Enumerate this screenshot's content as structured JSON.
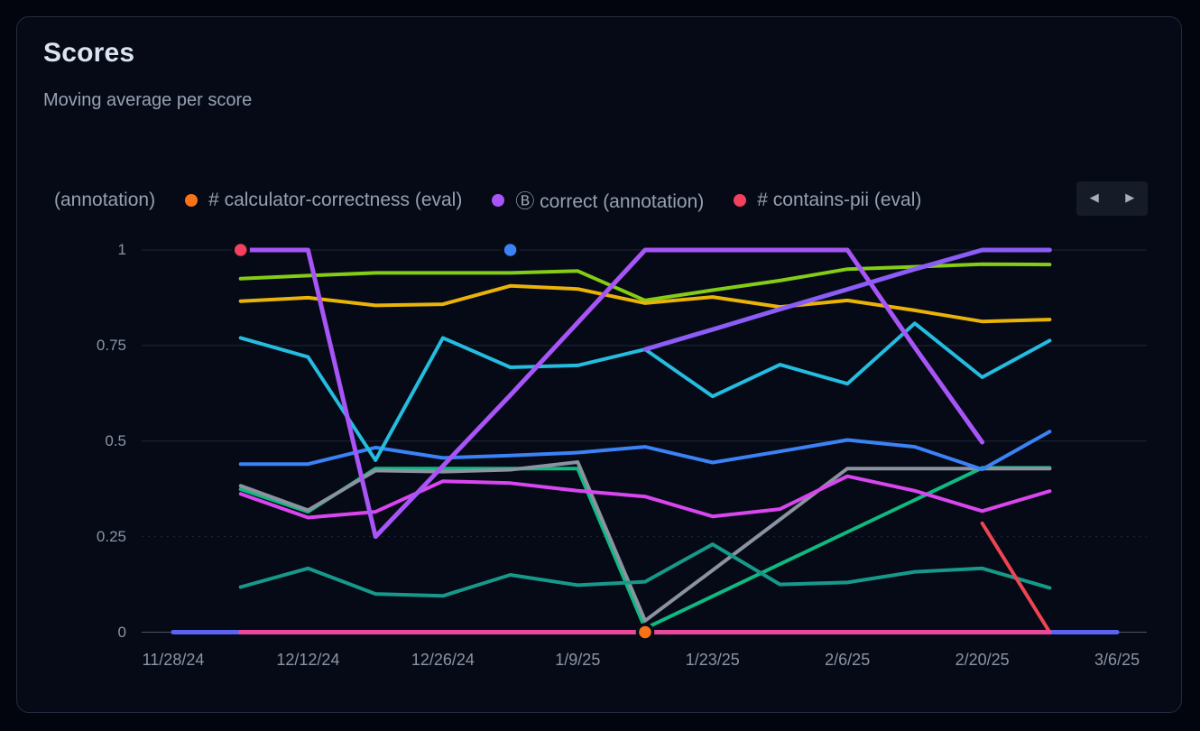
{
  "window": {
    "title": "Scores",
    "subtitle": "Moving average per score"
  },
  "legend": {
    "items": [
      {
        "label": "(annotation)",
        "color": null,
        "truncated": true
      },
      {
        "label": "# calculator-correctness (eval)",
        "color": "#f97316"
      },
      {
        "label": "Ⓑ correct (annotation)",
        "color": "#a855f7"
      },
      {
        "label": "# contains-pii (eval)",
        "color": "#f43f5e"
      }
    ],
    "icons": {
      "prev": "◀",
      "next": "▶"
    }
  },
  "colors": {
    "card_bg": "#050a16",
    "page_bg": "#02050d",
    "grid": "rgba(100,116,139,0.28)",
    "axis_zero": "#4a5366"
  },
  "chart_data": {
    "type": "line",
    "title": "Scores",
    "subtitle": "Moving average per score",
    "ylim": [
      0,
      1
    ],
    "grid": true,
    "legend_position": "top",
    "x_ticks": [
      "11/28/24",
      "12/12/24",
      "12/26/24",
      "1/9/25",
      "1/23/25",
      "2/6/25",
      "2/20/25",
      "3/6/25"
    ],
    "y_ticks": [
      "1",
      "0.75",
      "0.5",
      "0.25",
      "0"
    ],
    "y_tick_values": [
      1,
      0.75,
      0.5,
      0.25,
      0
    ],
    "all_dates": [
      "11/28/24",
      "12/5/24",
      "12/12/24",
      "12/19/24",
      "12/26/24",
      "1/2/25",
      "1/9/25",
      "1/16/25",
      "1/23/25",
      "1/30/25",
      "2/6/25",
      "2/13/25",
      "2/20/25",
      "2/27/25",
      "3/6/25"
    ],
    "series": [
      {
        "name": "zero-baseline (indigo, label not visible)",
        "color": "#5c63f2",
        "width": 5,
        "dates": [
          "11/28/24",
          "12/5/24",
          "12/12/24",
          "12/19/24",
          "12/26/24",
          "1/2/25",
          "1/9/25",
          "1/16/25",
          "1/23/25",
          "1/30/25",
          "2/6/25",
          "2/13/25",
          "2/20/25",
          "2/27/25",
          "3/6/25"
        ],
        "values": [
          0,
          0,
          0,
          0,
          0,
          0,
          0,
          0,
          0,
          0,
          0,
          0,
          0,
          0,
          0
        ]
      },
      {
        "name": "lime-green line (label not visible)",
        "color": "#84cc16",
        "width": 4,
        "dates": [
          "12/5/24",
          "12/12/24",
          "12/19/24",
          "12/26/24",
          "1/2/25",
          "1/9/25",
          "1/16/25",
          "1/23/25",
          "1/30/25",
          "2/6/25",
          "2/13/25",
          "2/20/25",
          "2/27/25"
        ],
        "values": [
          0.925,
          0.933,
          0.94,
          0.94,
          0.94,
          0.945,
          0.868,
          0.895,
          0.92,
          0.95,
          0.956,
          0.963,
          0.962
        ]
      },
      {
        "name": "amber line (label not visible)",
        "color": "#eab308",
        "width": 4,
        "dates": [
          "12/5/24",
          "12/12/24",
          "12/19/24",
          "12/26/24",
          "1/2/25",
          "1/9/25",
          "1/16/25",
          "1/23/25",
          "1/30/25",
          "2/6/25",
          "2/13/25",
          "2/20/25",
          "2/27/25"
        ],
        "values": [
          0.866,
          0.875,
          0.855,
          0.858,
          0.906,
          0.898,
          0.861,
          0.877,
          0.851,
          0.868,
          0.842,
          0.813,
          0.818
        ]
      },
      {
        "name": "emerald line (label not visible)",
        "color": "#10b981",
        "width": 4,
        "dates": [
          "12/5/24",
          "12/12/24",
          "12/19/24",
          "12/26/24",
          "1/2/25",
          "1/9/25",
          "1/16/25",
          "1/23/25",
          "1/30/25",
          "2/6/25",
          "2/13/25",
          "2/20/25",
          "2/27/25"
        ],
        "values": [
          0.374,
          0.315,
          0.428,
          0.428,
          0.428,
          0.428,
          0.01,
          0.094,
          0.178,
          0.262,
          0.346,
          0.43,
          0.43
        ]
      },
      {
        "name": "gray line (label not visible)",
        "color": "#8b92a0",
        "width": 4,
        "dates": [
          "12/5/24",
          "12/12/24",
          "12/19/24",
          "12/26/24",
          "1/2/25",
          "1/9/25",
          "1/16/25",
          "1/23/25",
          "1/30/25",
          "2/6/25",
          "2/13/25",
          "2/20/25",
          "2/27/25"
        ],
        "values": [
          0.383,
          0.319,
          0.423,
          0.42,
          0.425,
          0.445,
          0.03,
          0.162,
          0.295,
          0.428,
          0.428,
          0.428,
          0.428
        ]
      },
      {
        "name": "teal line (label not visible)",
        "color": "#17998a",
        "width": 4,
        "dates": [
          "12/5/24",
          "12/12/24",
          "12/19/24",
          "12/26/24",
          "1/2/25",
          "1/9/25",
          "1/16/25",
          "1/23/25",
          "1/30/25",
          "2/6/25",
          "2/13/25",
          "2/20/25",
          "2/27/25"
        ],
        "values": [
          0.118,
          0.167,
          0.1,
          0.095,
          0.15,
          0.123,
          0.132,
          0.23,
          0.125,
          0.13,
          0.158,
          0.167,
          0.116
        ]
      },
      {
        "name": "magenta line (label not visible)",
        "color": "#d946ef",
        "width": 4,
        "dates": [
          "12/5/24",
          "12/12/24",
          "12/19/24",
          "12/26/24",
          "1/2/25",
          "1/9/25",
          "1/16/25",
          "1/23/25",
          "1/30/25",
          "2/6/25",
          "2/13/25",
          "2/20/25",
          "2/27/25"
        ],
        "values": [
          0.362,
          0.3,
          0.315,
          0.395,
          0.39,
          0.37,
          0.355,
          0.303,
          0.322,
          0.408,
          0.37,
          0.317,
          0.369
        ]
      },
      {
        "name": "blue line (label not visible)",
        "color": "#3b82f6",
        "width": 4,
        "dates": [
          "12/5/24",
          "12/12/24",
          "12/19/24",
          "12/26/24",
          "1/2/25",
          "1/9/25",
          "1/16/25",
          "1/23/25",
          "1/30/25",
          "2/6/25",
          "2/13/25",
          "2/20/25",
          "2/27/25"
        ],
        "values": [
          0.44,
          0.44,
          0.483,
          0.456,
          0.462,
          0.47,
          0.485,
          0.444,
          0.473,
          0.503,
          0.485,
          0.426,
          0.525
        ]
      },
      {
        "name": "cyan line (label not visible)",
        "color": "#25bcdf",
        "width": 4,
        "dates": [
          "12/5/24",
          "12/12/24",
          "12/19/24",
          "12/26/24",
          "1/2/25",
          "1/9/25",
          "1/16/25",
          "1/23/25",
          "1/30/25",
          "2/6/25",
          "2/13/25",
          "2/20/25",
          "2/27/25"
        ],
        "values": [
          0.77,
          0.72,
          0.45,
          0.77,
          0.693,
          0.698,
          0.74,
          0.617,
          0.7,
          0.65,
          0.808,
          0.667,
          0.763
        ]
      },
      {
        "name": "purple line — Ⓑ correct (annotation)",
        "color": "#a855f7",
        "width": 5,
        "dates": [
          "12/5/24",
          "12/12/24",
          "12/19/24",
          "12/26/24",
          "1/2/25",
          "1/9/25",
          "1/16/25",
          "1/23/25",
          "1/30/25",
          "2/6/25",
          "2/13/25",
          "2/20/25"
        ],
        "values": [
          1,
          1,
          0.25,
          0.435,
          0.62,
          0.81,
          1,
          1,
          1,
          1,
          0.745,
          0.497
        ]
      },
      {
        "name": "violet rising line (label not visible)",
        "color": "#8b5cf6",
        "width": 5,
        "dates": [
          "1/16/25",
          "1/23/25",
          "1/30/25",
          "2/6/25",
          "2/13/25",
          "2/20/25",
          "2/27/25"
        ],
        "values": [
          0.74,
          0.792,
          0.845,
          0.897,
          0.95,
          1,
          1
        ]
      },
      {
        "name": "red line — # contains-pii (eval)",
        "color": "#ef4451",
        "width": 4,
        "dates": [
          "2/20/25",
          "2/27/25"
        ],
        "values": [
          0.285,
          0
        ]
      },
      {
        "name": "pink zero line (label not visible)",
        "color": "#ec4899",
        "width": 5,
        "dates": [
          "12/5/24",
          "12/12/24",
          "12/19/24",
          "12/26/24",
          "1/2/25",
          "1/9/25",
          "1/16/25",
          "1/23/25",
          "1/30/25",
          "2/6/25",
          "2/13/25",
          "2/20/25",
          "2/27/25"
        ],
        "values": [
          0,
          0,
          0,
          0,
          0,
          0,
          0,
          0,
          0,
          0,
          0,
          0,
          0
        ]
      }
    ],
    "markers": [
      {
        "name": "red-point",
        "date": "12/5/24",
        "value": 1,
        "color": "#f43f5e"
      },
      {
        "name": "blue-point",
        "date": "1/2/25",
        "value": 1,
        "color": "#3b82f6"
      },
      {
        "name": "orange-point",
        "date": "1/16/25",
        "value": 0,
        "color": "#f97316"
      }
    ]
  }
}
